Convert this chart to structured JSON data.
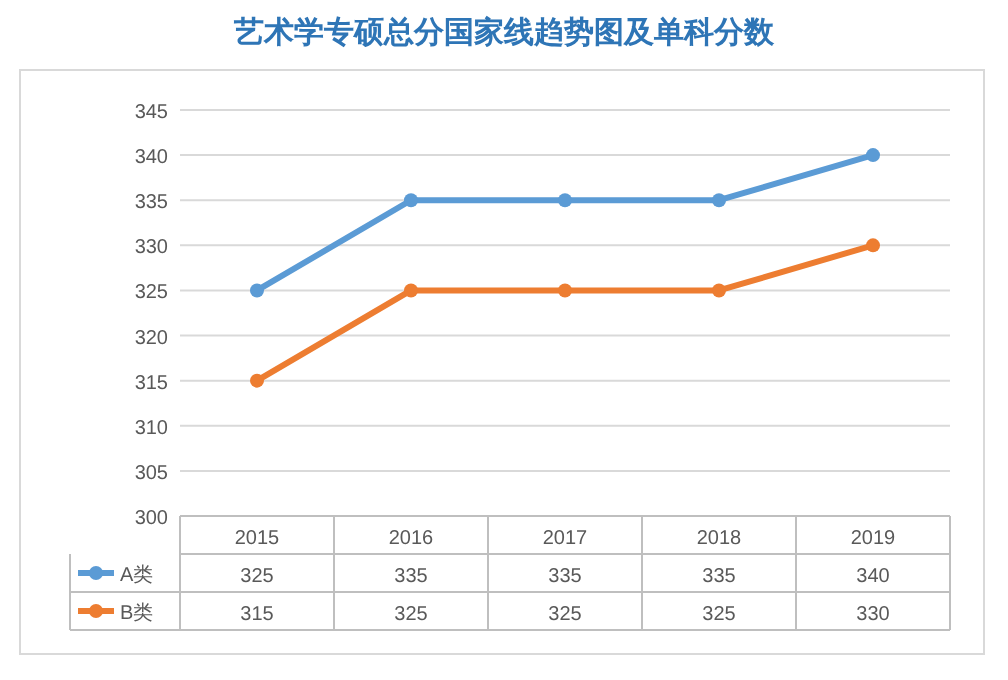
{
  "chart_data": {
    "type": "line",
    "title": "艺术学专硕总分国家线趋势图及单科分数",
    "categories": [
      "2015",
      "2016",
      "2017",
      "2018",
      "2019"
    ],
    "series": [
      {
        "name": "A类",
        "color": "#5b9bd5",
        "values": [
          325,
          335,
          335,
          335,
          340
        ]
      },
      {
        "name": "B类",
        "color": "#ed7d31",
        "values": [
          315,
          325,
          325,
          325,
          330
        ]
      }
    ],
    "ylim": [
      300,
      345
    ],
    "yticks": [
      300,
      305,
      310,
      315,
      320,
      325,
      330,
      335,
      340,
      345
    ],
    "grid": "y",
    "legend": "bottom",
    "marker": "circle",
    "line_style": "solid",
    "data_labels": true
  }
}
